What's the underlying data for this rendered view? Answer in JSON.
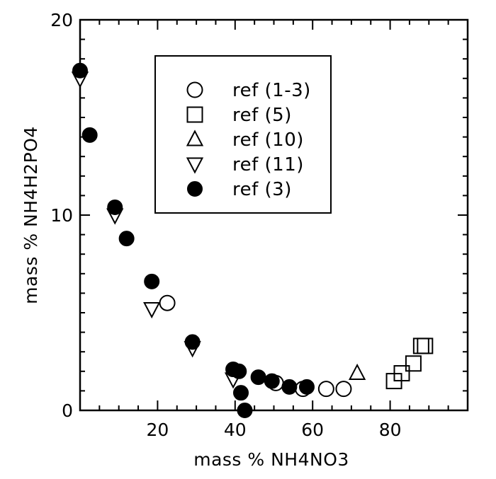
{
  "chart_data": {
    "type": "scatter",
    "title": "",
    "xlabel": "mass % NH4NO3",
    "ylabel": "mass % NH4H2PO4",
    "xlim": [
      0,
      100
    ],
    "ylim": [
      0,
      20
    ],
    "x_ticks": [
      20,
      40,
      60,
      80
    ],
    "y_ticks": [
      0,
      10,
      20
    ],
    "grid": false,
    "legend_position": "upper-center",
    "series": [
      {
        "name": "ref (1-3)",
        "marker": "circle-open",
        "points": [
          [
            22.5,
            5.5
          ],
          [
            50.5,
            1.4
          ],
          [
            57.5,
            1.1
          ],
          [
            63.5,
            1.1
          ],
          [
            68,
            1.1
          ]
        ]
      },
      {
        "name": "ref (5)",
        "marker": "square-open",
        "points": [
          [
            81,
            1.5
          ],
          [
            83,
            1.9
          ],
          [
            86,
            2.4
          ],
          [
            88,
            3.3
          ],
          [
            89,
            3.3
          ]
        ]
      },
      {
        "name": "ref (10)",
        "marker": "triangle-up-open",
        "points": [
          [
            71.5,
            1.9
          ]
        ]
      },
      {
        "name": "ref (11)",
        "marker": "triangle-down-open",
        "points": [
          [
            0,
            17.0
          ],
          [
            9,
            10.0
          ],
          [
            18.5,
            5.2
          ],
          [
            29,
            3.2
          ],
          [
            39.5,
            1.6
          ]
        ]
      },
      {
        "name": "ref (3)",
        "marker": "circle-filled",
        "points": [
          [
            0,
            17.4
          ],
          [
            2.5,
            14.1
          ],
          [
            9,
            10.4
          ],
          [
            12,
            8.8
          ],
          [
            18.5,
            6.6
          ],
          [
            29,
            3.5
          ],
          [
            39.5,
            2.1
          ],
          [
            41,
            2.0
          ],
          [
            41.5,
            0.9
          ],
          [
            42.5,
            0
          ],
          [
            46,
            1.7
          ],
          [
            49.5,
            1.5
          ],
          [
            54,
            1.2
          ],
          [
            58.5,
            1.2
          ]
        ]
      }
    ]
  }
}
